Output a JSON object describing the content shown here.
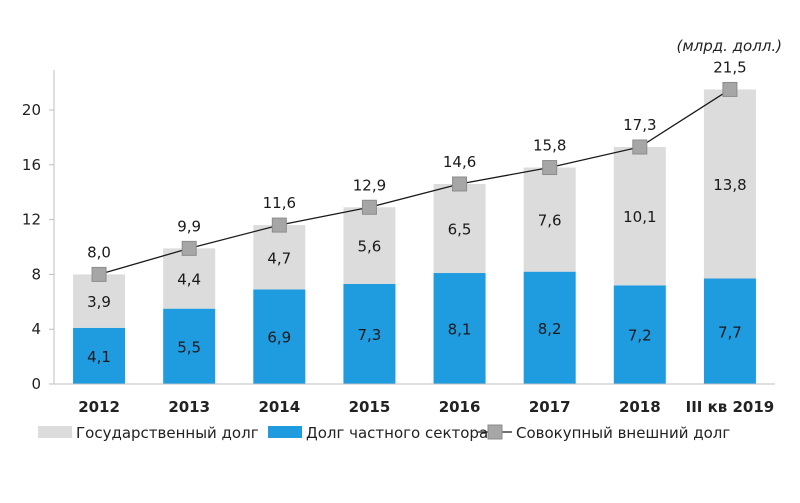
{
  "chart_data": {
    "type": "bar",
    "stacked": true,
    "unit_label": "(млрд. долл.)",
    "categories": [
      "2012",
      "2013",
      "2014",
      "2015",
      "2016",
      "2017",
      "2018",
      "III кв 2019"
    ],
    "series": [
      {
        "name": "Долг частного сектора",
        "kind": "bar",
        "color": "#1f9be0",
        "values": [
          4.1,
          5.5,
          6.9,
          7.3,
          8.1,
          8.2,
          7.2,
          7.7
        ],
        "labels": [
          "4,1",
          "5,5",
          "6,9",
          "7,3",
          "8,1",
          "8,2",
          "7,2",
          "7,7"
        ]
      },
      {
        "name": "Государственный долг",
        "kind": "bar",
        "color": "#dcdcdc",
        "values": [
          3.9,
          4.4,
          4.7,
          5.6,
          6.5,
          7.6,
          10.1,
          13.8
        ],
        "labels": [
          "3,9",
          "4,4",
          "4,7",
          "5,6",
          "6,5",
          "7,6",
          "10,1",
          "13,8"
        ]
      },
      {
        "name": "Совокупный внешний долг",
        "kind": "line",
        "color": "#a6a6a6",
        "values": [
          8.0,
          9.9,
          11.6,
          12.9,
          14.6,
          15.8,
          17.3,
          21.5
        ],
        "labels": [
          "8,0",
          "9,9",
          "11,6",
          "12,9",
          "14,6",
          "15,8",
          "17,3",
          "21,5"
        ]
      }
    ],
    "ylim": [
      0,
      22
    ],
    "yticks": [
      "0",
      "4",
      "8",
      "12",
      "16",
      "20"
    ],
    "ytick_values": [
      0,
      4,
      8,
      12,
      16,
      20
    ],
    "legend_order": [
      "Государственный долг",
      "Долг частного сектора",
      "Совокупный внешний долг"
    ],
    "legend_position": "bottom",
    "grid": false
  }
}
